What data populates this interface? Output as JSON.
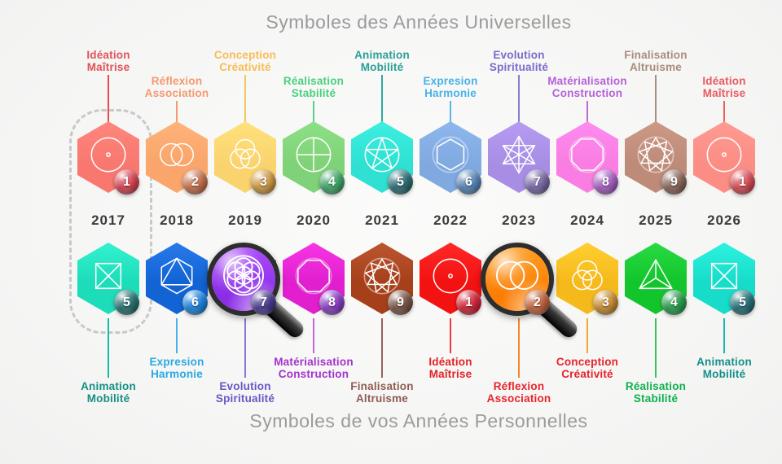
{
  "titles": {
    "universal": "Symboles des Années Universelles",
    "personal": "Symboles de vos Années Personnelles"
  },
  "highlight": {
    "year": "2017",
    "outline_color": "#c9c9c9"
  },
  "magnified_years": [
    "2019",
    "2023"
  ],
  "columns": [
    {
      "year": "2017",
      "universal": {
        "number": "1",
        "icon": "circle-dot",
        "label_line1": "Idéation",
        "label_line2": "Maîtrise",
        "label_color": "#e05356",
        "hex_color": "#f8786f",
        "line_color": "#e84b4f",
        "badge_color": "#d94453",
        "label_position": "high"
      },
      "personal": {
        "number": "5",
        "icon": "square-x",
        "label_line1": "Animation",
        "label_line2": "Mobilité",
        "label_color": "#168f84",
        "hex_color": "#1ddcb9",
        "line_color": "#16bda4",
        "badge_color": "#2a7372",
        "label_position": "low",
        "magnifier": false
      }
    },
    {
      "year": "2018",
      "universal": {
        "number": "2",
        "icon": "vesica",
        "label_line1": "Réflexion",
        "label_line2": "Association",
        "label_color": "#f4996e",
        "hex_color": "#f9a56b",
        "line_color": "#f49a6e",
        "badge_color": "#c7724f",
        "label_position": "low"
      },
      "personal": {
        "number": "6",
        "icon": "triangle-hex",
        "label_line1": "Expresion",
        "label_line2": "Harmonie",
        "label_color": "#29a9e2",
        "hex_color": "#1263d4",
        "line_color": "#45b2e8",
        "badge_color": "#1f86e0",
        "label_position": "high",
        "magnifier": false
      }
    },
    {
      "year": "2019",
      "universal": {
        "number": "3",
        "icon": "trinity",
        "label_line1": "Conception",
        "label_line2": "Créativité",
        "label_color": "#f8bc55",
        "hex_color": "#fad36e",
        "line_color": "#f8c45c",
        "badge_color": "#cf9a44",
        "label_position": "high"
      },
      "personal": {
        "number": "7",
        "icon": "seed-of-life",
        "label_line1": "Evolution",
        "label_line2": "Spiritualité",
        "label_color": "#6657c8",
        "hex_color": "#8b2de6",
        "line_color": "#8a76d4",
        "badge_color": "#4a3d8f",
        "label_position": "low",
        "magnifier": true
      }
    },
    {
      "year": "2020",
      "universal": {
        "number": "4",
        "icon": "crossed-circle",
        "label_line1": "Réalisation",
        "label_line2": "Stabilité",
        "label_color": "#49d07d",
        "hex_color": "#80d278",
        "line_color": "#55d283",
        "badge_color": "#40a868",
        "label_position": "low"
      },
      "personal": {
        "number": "8",
        "icon": "octagon",
        "label_line1": "Matérialisation",
        "label_line2": "Construction",
        "label_color": "#a332cc",
        "hex_color": "#e11fce",
        "line_color": "#c565da",
        "badge_color": "#8d3fc4",
        "label_position": "high",
        "magnifier": false
      }
    },
    {
      "year": "2021",
      "universal": {
        "number": "5",
        "icon": "pentagram",
        "label_line1": "Animation",
        "label_line2": "Mobilité",
        "label_color": "#2aa096",
        "hex_color": "#2fe1d2",
        "line_color": "#2fa89d",
        "badge_color": "#2f6f77",
        "label_position": "high"
      },
      "personal": {
        "number": "9",
        "icon": "nonagram",
        "label_line1": "Finalisation",
        "label_line2": "Altruisme",
        "label_color": "#8f5c51",
        "hex_color": "#a6401b",
        "line_color": "#97625a",
        "badge_color": "#7c5648",
        "label_position": "low",
        "magnifier": false
      }
    },
    {
      "year": "2022",
      "universal": {
        "number": "6",
        "icon": "hexagon",
        "label_line1": "Expresion",
        "label_line2": "Harmonie",
        "label_color": "#47b2e8",
        "hex_color": "#80a9e0",
        "line_color": "#55b6e8",
        "badge_color": "#5a87b8",
        "label_position": "low"
      },
      "personal": {
        "number": "1",
        "icon": "circle-dot",
        "label_line1": "Idéation",
        "label_line2": "Maîtrise",
        "label_color": "#e32225",
        "hex_color": "#f31212",
        "line_color": "#ee3a3a",
        "badge_color": "#d42739",
        "label_position": "high",
        "magnifier": false
      }
    },
    {
      "year": "2023",
      "universal": {
        "number": "7",
        "icon": "merkaba",
        "label_line1": "Evolution",
        "label_line2": "Spiritualité",
        "label_color": "#7a6bcc",
        "hex_color": "#a78ee4",
        "line_color": "#8a7cd0",
        "badge_color": "#7a6aa8",
        "label_position": "high"
      },
      "personal": {
        "number": "2",
        "icon": "vesica",
        "label_line1": "Réflexion",
        "label_line2": "Association",
        "label_color": "#e8232b",
        "hex_color": "#fc7d03",
        "line_color": "#f8862e",
        "badge_color": "#c4653f",
        "label_position": "low",
        "magnifier": true
      }
    },
    {
      "year": "2024",
      "universal": {
        "number": "8",
        "icon": "octagon",
        "label_line1": "Matérialisation",
        "label_line2": "Construction",
        "label_color": "#b560d8",
        "hex_color": "#f97de2",
        "line_color": "#c06ad8",
        "badge_color": "#a861c4",
        "label_position": "low"
      },
      "personal": {
        "number": "3",
        "icon": "trinity",
        "label_line1": "Conception",
        "label_line2": "Créativité",
        "label_color": "#e8232b",
        "hex_color": "#f6b91b",
        "line_color": "#f5a82a",
        "badge_color": "#cc8f35",
        "label_position": "high",
        "magnifier": false
      }
    },
    {
      "year": "2025",
      "universal": {
        "number": "9",
        "icon": "nonagram",
        "label_line1": "Finalisation",
        "label_line2": "Altruisme",
        "label_color": "#a98b7c",
        "hex_color": "#bd8b78",
        "line_color": "#ab8d7e",
        "badge_color": "#8a685a",
        "label_position": "high"
      },
      "personal": {
        "number": "4",
        "icon": "tetrahedron",
        "label_line1": "Réalisation",
        "label_line2": "Stabilité",
        "label_color": "#0eb14d",
        "hex_color": "#13c52d",
        "line_color": "#3cc45c",
        "badge_color": "#2aa04e",
        "label_position": "low",
        "magnifier": false
      }
    },
    {
      "year": "2026",
      "universal": {
        "number": "1",
        "icon": "circle-dot",
        "label_line1": "Idéation",
        "label_line2": "Maîtrise",
        "label_color": "#e65a60",
        "hex_color": "#fb8d84",
        "line_color": "#ea5f62",
        "badge_color": "#d94e57",
        "label_position": "low"
      },
      "personal": {
        "number": "5",
        "icon": "square-x",
        "label_line1": "Animation",
        "label_line2": "Mobilité",
        "label_color": "#14918a",
        "hex_color": "#17dcca",
        "line_color": "#19b9ab",
        "badge_color": "#27737a",
        "label_position": "high",
        "magnifier": false
      }
    }
  ]
}
